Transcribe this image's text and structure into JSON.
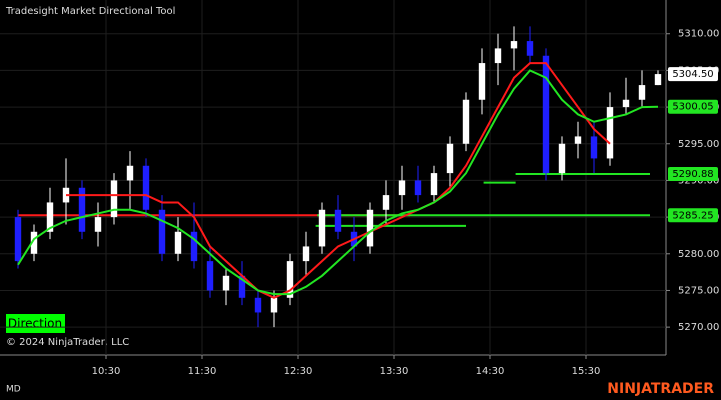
{
  "chart_data": {
    "type": "candlestick",
    "title": "Tradesight Market Directional Tool",
    "copyright": "© 2024 NinjaTrader, LLC",
    "button": "Direction",
    "footer_left": "MD",
    "brand": "NINJATRADER",
    "up_color": "#ffffff",
    "down_color": "#1f1fff",
    "x": [
      575,
      585,
      595,
      605,
      615,
      625,
      635,
      645,
      655,
      665,
      675,
      685,
      695,
      705,
      715,
      725,
      735,
      745,
      755,
      765,
      775,
      785,
      795,
      805,
      815,
      825,
      835,
      845,
      855,
      865,
      875,
      885,
      895,
      905,
      915,
      925,
      935,
      945,
      955,
      965,
      975
    ],
    "open": [
      5285,
      5280,
      5283,
      5287,
      5289,
      5283,
      5285,
      5290,
      5292,
      5286,
      5280,
      5283,
      5279,
      5275,
      5277,
      5274,
      5272,
      5274,
      5279,
      5281,
      5286,
      5283,
      5281,
      5286,
      5288,
      5290,
      5288,
      5291,
      5295,
      5301,
      5306,
      5308,
      5309,
      5307,
      5291,
      5295,
      5296,
      5293,
      5300,
      5301,
      5303
    ],
    "high": [
      5286,
      5284,
      5289,
      5293,
      5290,
      5287,
      5291,
      5294,
      5293,
      5288,
      5285,
      5287,
      5281,
      5278,
      5279,
      5275,
      5275,
      5280,
      5283,
      5287,
      5288,
      5285,
      5287,
      5290,
      5292,
      5292,
      5292,
      5296,
      5302,
      5308,
      5310,
      5311,
      5311,
      5308,
      5296,
      5298,
      5298,
      5302,
      5304,
      5305,
      5305
    ],
    "low": [
      5278,
      5279,
      5282,
      5284,
      5282,
      5281,
      5284,
      5286,
      5285,
      5279,
      5279,
      5278,
      5274,
      5273,
      5273,
      5270,
      5270,
      5273,
      5277,
      5280,
      5282,
      5279,
      5280,
      5284,
      5286,
      5287,
      5287,
      5289,
      5294,
      5299,
      5303,
      5305,
      5306,
      5290,
      5290,
      5293,
      5291,
      5292,
      5299,
      5300,
      5303
    ],
    "close": [
      5279,
      5283,
      5287,
      5289,
      5283,
      5285,
      5290,
      5292,
      5286,
      5280,
      5283,
      5279,
      5275,
      5277,
      5274,
      5272,
      5274,
      5279,
      5281,
      5286,
      5283,
      5281,
      5286,
      5288,
      5290,
      5288,
      5291,
      5295,
      5301,
      5306,
      5308,
      5309,
      5307,
      5291,
      5295,
      5296,
      5293,
      5300,
      5301,
      5303,
      5304.5
    ],
    "lines": [
      {
        "color": "#ff1a1a",
        "values": [
          null,
          null,
          null,
          5288,
          5288,
          5288,
          5288,
          5288,
          5288,
          5287,
          5287,
          5285,
          5281,
          5279,
          5277,
          5275,
          5274,
          5275,
          5277,
          5279,
          5281,
          5282,
          5283,
          5284,
          5285,
          5286,
          5287,
          5289,
          5292,
          5296,
          5300,
          5304,
          5306,
          5306,
          5303,
          5300,
          5297,
          5295,
          null,
          null,
          null
        ]
      },
      {
        "color": "#22e622",
        "values": [
          5278.5,
          5282,
          5283.5,
          5284.5,
          5285,
          5285.5,
          5286,
          5286,
          5285.5,
          5284.5,
          5283.5,
          5282,
          5280,
          5278,
          5276.5,
          5275,
          5274.5,
          5274.5,
          5275.5,
          5277,
          5279,
          5281,
          5283,
          5284.5,
          5285.5,
          5286,
          5287,
          5288.5,
          5291,
          5295,
          5299,
          5302.5,
          5305,
          5304,
          5301,
          5299,
          5298,
          5298.5,
          5299,
          5300,
          5300.05
        ]
      }
    ],
    "levels": [
      {
        "color": "#ff1a1a",
        "value": 5285.25,
        "x": [
          575,
          820
        ]
      },
      {
        "color": "#22e622",
        "value": 5285.25,
        "x": [
          762,
          970
        ]
      },
      {
        "color": "#22e622",
        "value": 5283.8,
        "x": [
          761,
          855
        ]
      },
      {
        "color": "#22e622",
        "value": 5289.7,
        "x": [
          866,
          886
        ]
      },
      {
        "color": "#22e622",
        "value": 5290.88,
        "x": [
          886,
          970
        ]
      }
    ],
    "axis_markers": [
      {
        "value": 5304.5,
        "label": "5304.50",
        "color": "#ffffff"
      },
      {
        "value": 5300.05,
        "label": "5300.05",
        "color": "#22e622"
      },
      {
        "value": 5290.88,
        "label": "5290.88",
        "color": "#22e622"
      },
      {
        "value": 5285.25,
        "label": "5285.25",
        "color": "#22e622"
      }
    ],
    "xlim": [
      563.75,
      980
    ],
    "ylim": [
      5266.2,
      5314.6
    ],
    "xticks": [
      {
        "value": 630,
        "label": "10:30"
      },
      {
        "value": 690,
        "label": "11:30"
      },
      {
        "value": 750,
        "label": "12:30"
      },
      {
        "value": 810,
        "label": "13:30"
      },
      {
        "value": 870,
        "label": "14:30"
      },
      {
        "value": 930,
        "label": "15:30"
      }
    ],
    "yticks": [
      {
        "value": 5270,
        "label": "5270.00"
      },
      {
        "value": 5275,
        "label": "5275.00"
      },
      {
        "value": 5280,
        "label": "5280.00"
      },
      {
        "value": 5285,
        "label": "5285.00"
      },
      {
        "value": 5290,
        "label": "5290.00"
      },
      {
        "value": 5295,
        "label": "5295.00"
      },
      {
        "value": 5300,
        "label": "5300.00"
      },
      {
        "value": 5305,
        "label": "5305.00"
      },
      {
        "value": 5310,
        "label": "5310.00"
      }
    ],
    "grid": true
  }
}
